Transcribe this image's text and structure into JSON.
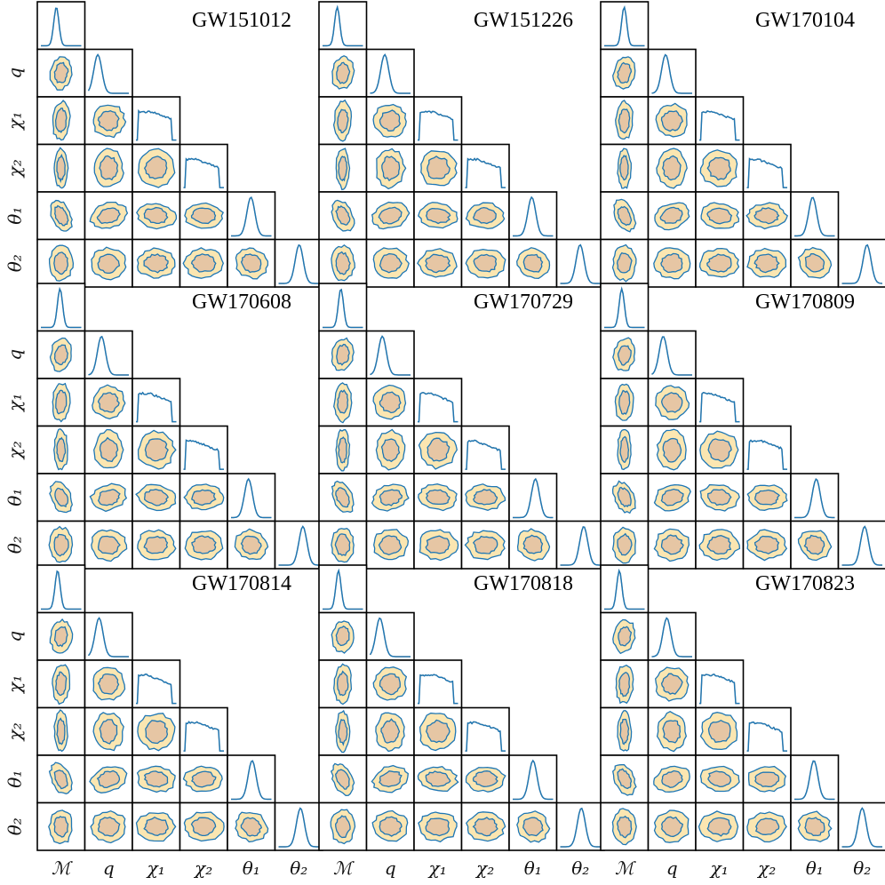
{
  "chart_data": {
    "type": "corner",
    "parameters": [
      "ℳ",
      "q",
      "χ₁",
      "χ₂",
      "θ₁",
      "θ₂"
    ],
    "row_labels": [
      "q",
      "χ₁",
      "χ₂",
      "θ₁",
      "θ₂"
    ],
    "column_labels": [
      "ℳ",
      "q",
      "χ₁",
      "χ₂",
      "θ₁",
      "θ₂"
    ],
    "colors": {
      "outer_region": "#fbe6b1",
      "inner_region": "#e6c6a4",
      "contour_line": "#1f77b4",
      "second_line": "#ff7f0e",
      "frame": "#000000"
    },
    "panels": [
      {
        "title": "GW151012"
      },
      {
        "title": "GW151226"
      },
      {
        "title": "GW170104"
      },
      {
        "title": "GW170608"
      },
      {
        "title": "GW170729"
      },
      {
        "title": "GW170809"
      },
      {
        "title": "GW170814"
      },
      {
        "title": "GW170818"
      },
      {
        "title": "GW170823"
      }
    ]
  }
}
